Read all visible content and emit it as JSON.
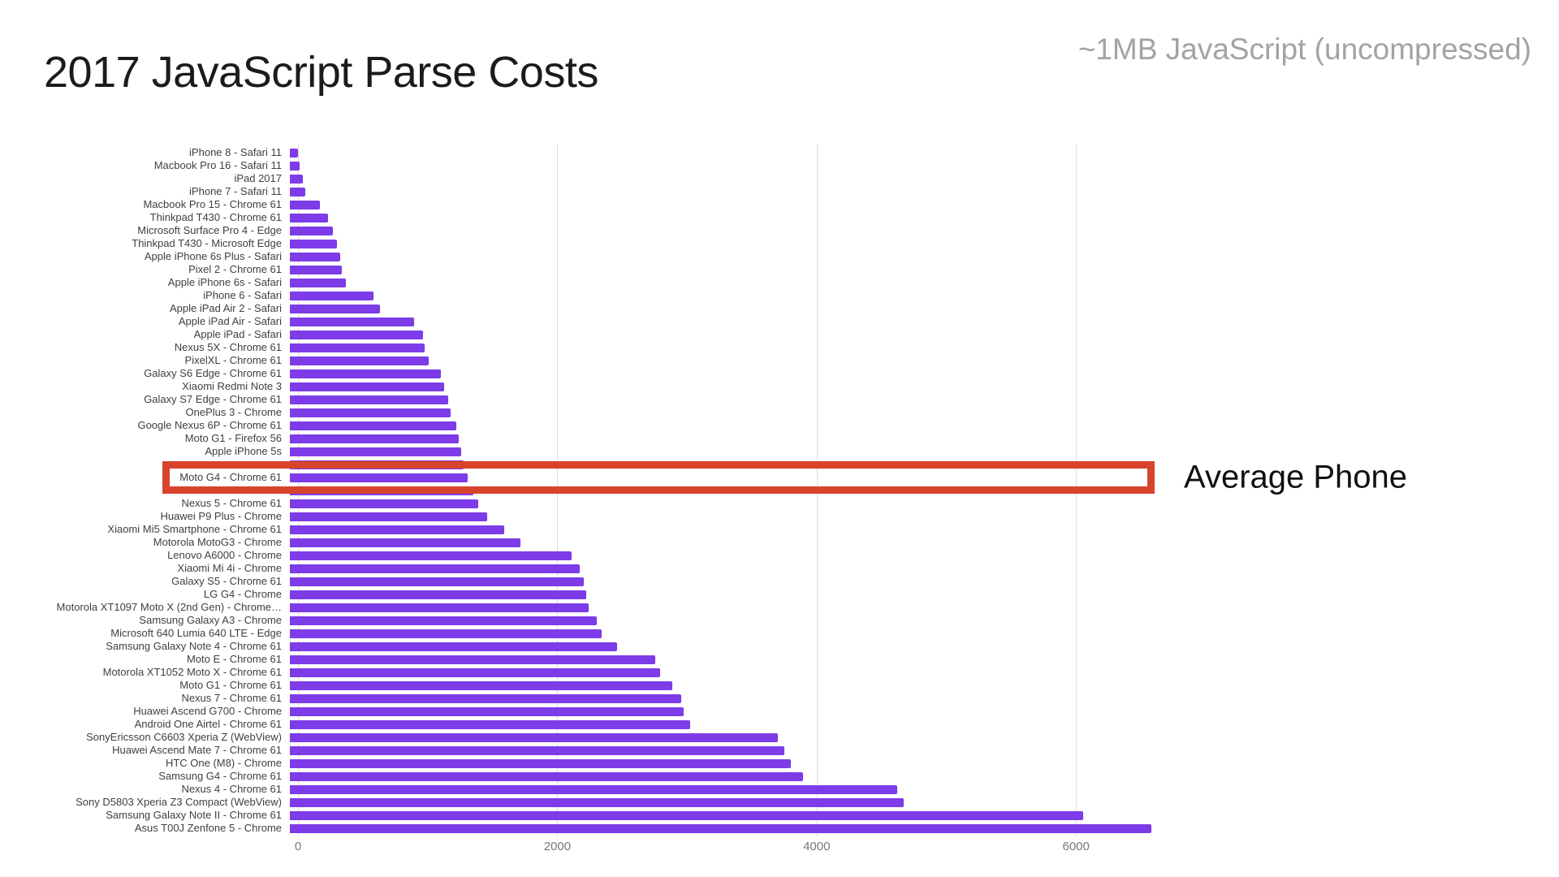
{
  "header": {
    "title": "2017 JavaScript Parse Costs",
    "subtitle": "~1MB JavaScript (uncompressed)"
  },
  "chart_data": {
    "type": "bar",
    "orientation": "horizontal",
    "title": "2017 JavaScript Parse Costs",
    "subtitle": "~1MB JavaScript (uncompressed)",
    "xlabel": "",
    "ylabel": "",
    "x_ticks": [
      0,
      2000,
      4000,
      6000
    ],
    "xmax": 6600,
    "grid": true,
    "bar_color": "#7d3ce8",
    "highlight": {
      "index": 25,
      "label": "Average Phone",
      "color": "#d8432c"
    },
    "categories": [
      "iPhone 8 - Safari 11",
      "Macbook Pro 16 - Safari 11",
      "iPad 2017",
      "iPhone 7 - Safari 11",
      "Macbook Pro 15 - Chrome 61",
      "Thinkpad T430 - Chrome 61",
      "Microsoft Surface Pro 4 - Edge",
      "Thinkpad T430 - Microsoft Edge",
      "Apple iPhone 6s Plus - Safari",
      "Pixel 2 - Chrome 61",
      "Apple iPhone 6s - Safari",
      "iPhone 6 - Safari",
      "Apple iPad Air 2 - Safari",
      "Apple iPad Air - Safari",
      "Apple iPad - Safari",
      "Nexus 5X - Chrome 61",
      "PixelXL - Chrome 61",
      "Galaxy S6 Edge - Chrome 61",
      "Xiaomi Redmi Note 3",
      "Galaxy S7 Edge - Chrome 61",
      "OnePlus 3 - Chrome",
      "Google Nexus 6P - Chrome 61",
      "Moto G1 - Firefox 56",
      "Apple iPhone 5s",
      "",
      "Moto G4 - Chrome 61",
      "",
      "Nexus 5 - Chrome 61",
      "Huawei P9 Plus - Chrome",
      "Xiaomi Mi5 Smartphone - Chrome 61",
      "Motorola MotoG3 - Chrome",
      "Lenovo A6000 - Chrome",
      "Xiaomi Mi 4i - Chrome",
      "Galaxy S5 - Chrome 61",
      "LG G4 - Chrome",
      "Motorola XT1097 Moto X (2nd Gen) - Chrome…",
      "Samsung Galaxy A3 - Chrome",
      "Microsoft 640 Lumia 640 LTE - Edge",
      "Samsung Galaxy Note 4 - Chrome 61",
      "Moto E - Chrome 61",
      "Motorola XT1052 Moto X - Chrome 61",
      "Moto G1 - Chrome 61",
      "Nexus 7 - Chrome 61",
      "Huawei Ascend G700 - Chrome",
      "Android One Airtel - Chrome 61",
      "SonyEricsson C6603 Xperia Z (WebView)",
      "Huawei Ascend Mate 7 - Chrome 61",
      "HTC One (M8) - Chrome",
      "Samsung G4 - Chrome 61",
      "Nexus 4 - Chrome 61",
      "Sony D5803 Xperia Z3 Compact (WebView)",
      "Samsung Galaxy Note II - Chrome 61",
      "Asus T00J Zenfone 5 - Chrome"
    ],
    "values": [
      60,
      75,
      100,
      120,
      230,
      290,
      330,
      360,
      385,
      400,
      425,
      640,
      690,
      950,
      1015,
      1030,
      1060,
      1155,
      1180,
      1210,
      1230,
      1270,
      1290,
      1310,
      1330,
      1360,
      1400,
      1440,
      1510,
      1640,
      1760,
      2155,
      2215,
      2245,
      2265,
      2285,
      2345,
      2380,
      2500,
      2790,
      2830,
      2920,
      2990,
      3010,
      3060,
      3730,
      3780,
      3830,
      3920,
      4640,
      4690,
      6060,
      6580
    ]
  }
}
